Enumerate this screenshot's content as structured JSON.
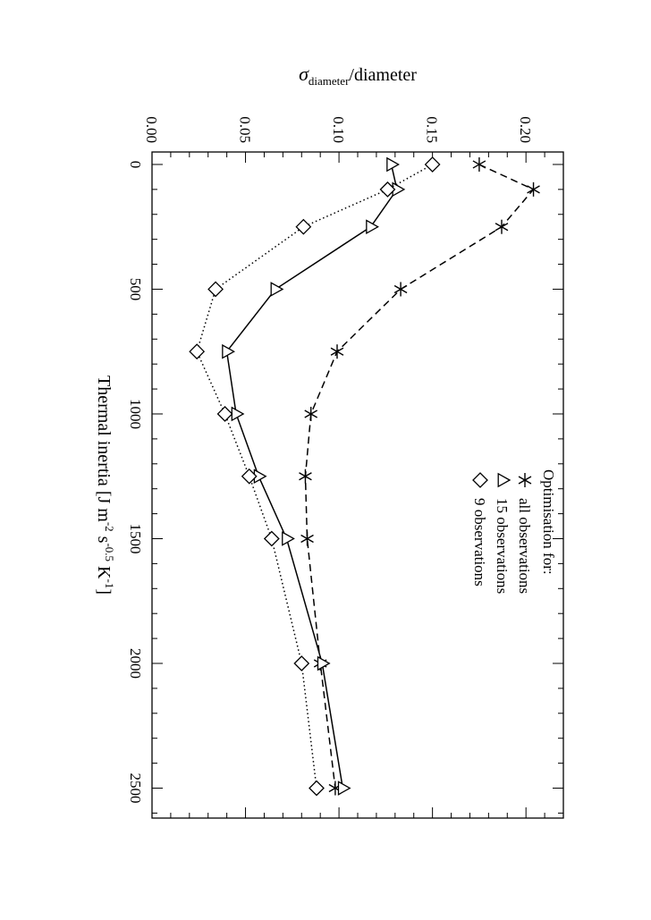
{
  "chart_data": {
    "type": "line",
    "orientation": "rotated 90 degrees clockwise",
    "xlabel": "Thermal inertia [J m⁻² s⁻⁰ᵅ5 K⁻¹]",
    "xlabel_parts": {
      "prefix": "Thermal inertia [J m",
      "m_exp": "-2",
      "s": " s",
      "s_exp": "-0.5",
      "k": " K",
      "k_exp": "-1",
      "suffix": "]"
    },
    "ylabel_parts": {
      "sigma": "σ",
      "sub": "diameter",
      "rest": "/diameter"
    },
    "xlim": [
      -50,
      2620
    ],
    "ylim": [
      0.0,
      0.22
    ],
    "xticks": [
      0,
      500,
      1000,
      1500,
      2000,
      2500
    ],
    "yticks": [
      "0.00",
      "0.05",
      "0.10",
      "0.15",
      "0.20"
    ],
    "x": [
      0,
      100,
      250,
      500,
      750,
      1000,
      1250,
      1500,
      2000,
      2500
    ],
    "series": [
      {
        "name": "all observations",
        "marker": "asterisk",
        "line": "dashed",
        "values": [
          0.175,
          0.204,
          0.187,
          0.133,
          0.099,
          0.085,
          0.082,
          0.083,
          0.09,
          0.098
        ]
      },
      {
        "name": "15 observations",
        "marker": "triangle",
        "line": "solid",
        "values": [
          0.128,
          0.131,
          0.117,
          0.066,
          0.04,
          0.045,
          0.057,
          0.072,
          0.091,
          0.102
        ]
      },
      {
        "name": "9 observations",
        "marker": "diamond",
        "line": "dotted",
        "values": [
          0.15,
          0.126,
          0.081,
          0.034,
          0.024,
          0.039,
          0.052,
          0.064,
          0.08,
          0.088
        ]
      }
    ],
    "legend": {
      "title": "Optimisation for:",
      "placement": "upper-right (rotated view)"
    }
  }
}
